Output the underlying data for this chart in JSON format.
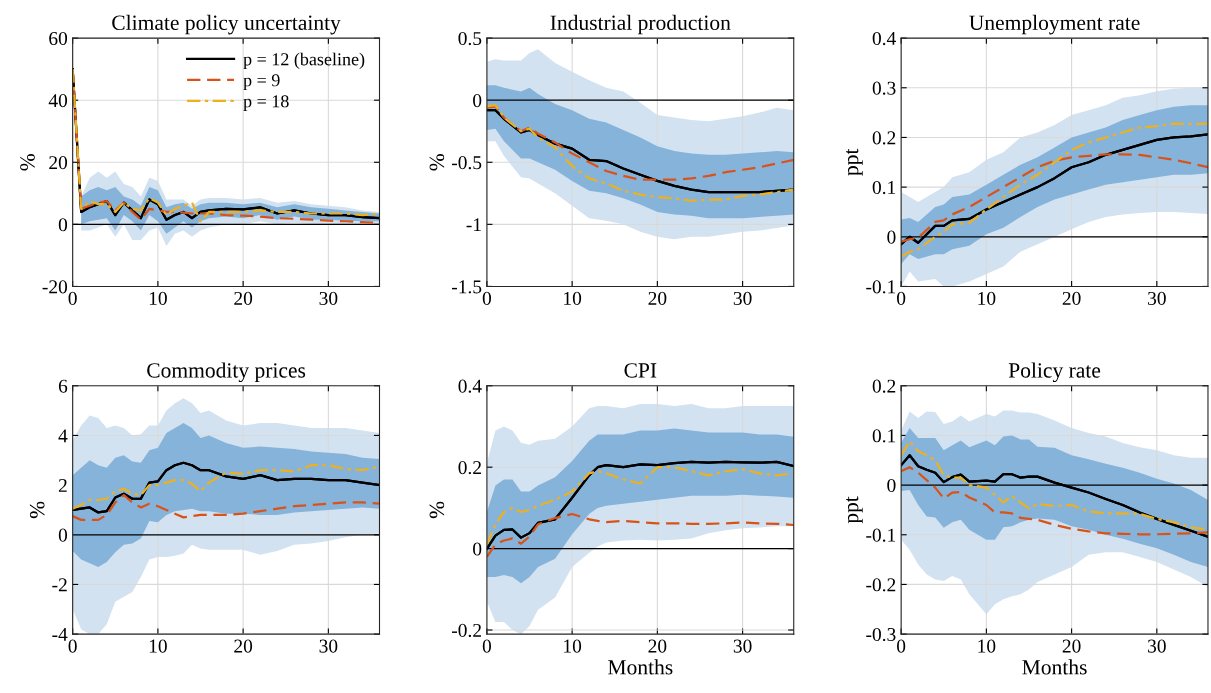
{
  "chart_data": [
    {
      "type": "line",
      "title": "Climate policy uncertainty",
      "ylabel": "%",
      "xlim": [
        0,
        36
      ],
      "xticks": [
        0,
        10,
        20,
        30
      ],
      "ylim": [
        -20,
        60
      ],
      "yticks": [
        -20,
        0,
        20,
        40,
        60
      ],
      "grid": true,
      "legend": "top right",
      "ref_lines": [
        {
          "axis": "y",
          "value": 0,
          "color": "#000000"
        }
      ],
      "x": [
        0,
        1,
        2,
        3,
        4,
        5,
        6,
        7,
        8,
        9,
        10,
        11,
        12,
        13,
        14,
        15,
        16,
        18,
        20,
        22,
        24,
        26,
        28,
        30,
        32,
        34,
        36
      ],
      "series": [
        {
          "color": "#000000",
          "line_style": "solid",
          "values": [
            50,
            4,
            5.5,
            6.5,
            7.5,
            3,
            7,
            4.5,
            2,
            8,
            6.5,
            1.5,
            3,
            4,
            2,
            4,
            4.5,
            5,
            4.8,
            5.5,
            3.5,
            4.5,
            3.5,
            3,
            3,
            2.3,
            2
          ],
          "lower": [
            null,
            -2,
            -2,
            -1,
            0,
            -4,
            0,
            -5,
            -5,
            -2,
            -1,
            -7,
            -3,
            -2,
            -4,
            -2,
            -1,
            0,
            0,
            1,
            0,
            0.5,
            0,
            0,
            0,
            0,
            0
          ],
          "upper": [
            null,
            9,
            15,
            17,
            15,
            17,
            13,
            12,
            9,
            15,
            14,
            8,
            8,
            8,
            6,
            8,
            8.5,
            8.5,
            8,
            8.5,
            7,
            7.5,
            6.5,
            6,
            5.5,
            4.5,
            4
          ]
        },
        {
          "name": "p = 12 (baseline)",
          "color": "#000000",
          "line_style": "solid",
          "values": [
            50,
            4,
            5.5,
            6.5,
            7.5,
            3,
            7,
            4.5,
            2,
            8,
            6.5,
            1.5,
            3,
            4,
            2,
            4,
            4.5,
            5,
            4.8,
            5.5,
            3.5,
            4.5,
            3.5,
            3,
            3,
            2.3,
            2
          ],
          "lower": [
            null,
            0,
            1,
            1.5,
            2,
            -2,
            3,
            1,
            -2,
            3,
            1,
            -3,
            -1,
            1,
            -1,
            1,
            2,
            2.5,
            2,
            3,
            1.5,
            2.5,
            1.5,
            1.5,
            1.2,
            1,
            1
          ],
          "upper": [
            null,
            9,
            11,
            12,
            11,
            12,
            9,
            8,
            6,
            12,
            11,
            5.5,
            6.5,
            7,
            5,
            6.5,
            7,
            7,
            6.5,
            7,
            5.5,
            6.5,
            5.5,
            5,
            4.5,
            4,
            3.5
          ]
        },
        {
          "name": "p = 9",
          "color": "#d95319",
          "line_style": "dashed",
          "values": [
            50,
            5,
            6,
            7,
            7.5,
            4.5,
            7,
            4,
            1.5,
            5,
            4.5,
            4,
            4,
            3.8,
            3.5,
            3.5,
            3.5,
            3,
            2.8,
            2.5,
            2,
            1.8,
            1.5,
            1.2,
            1,
            0.7,
            0.5
          ]
        },
        {
          "name": "p = 18",
          "color": "#edb120",
          "line_style": "dashdot",
          "values": [
            50,
            5,
            7.5,
            6.5,
            6.5,
            4,
            7,
            5,
            4.5,
            8.5,
            7,
            3,
            5,
            6,
            7,
            1,
            4,
            4,
            4,
            4.5,
            4,
            4,
            3.5,
            3.5,
            3.5,
            3,
            3.5
          ]
        }
      ]
    },
    {
      "type": "line",
      "title": "Industrial production",
      "ylabel": "%",
      "xlim": [
        0,
        36
      ],
      "xticks": [
        0,
        10,
        20,
        30
      ],
      "ylim": [
        -1.5,
        0.5
      ],
      "yticks": [
        -1.5,
        -1,
        -0.5,
        0,
        0.5
      ],
      "grid": true,
      "ref_lines": [
        {
          "axis": "y",
          "value": 0,
          "color": "#000000"
        }
      ],
      "x": [
        0,
        1,
        2,
        4,
        5,
        6,
        8,
        10,
        12,
        14,
        16,
        18,
        20,
        22,
        24,
        26,
        28,
        30,
        32,
        34,
        36
      ],
      "series": [
        {
          "color": "#000000",
          "line_style": "solid",
          "values": [
            -0.08,
            -0.08,
            -0.15,
            -0.26,
            -0.24,
            -0.28,
            -0.35,
            -0.39,
            -0.48,
            -0.49,
            -0.55,
            -0.6,
            -0.65,
            -0.69,
            -0.72,
            -0.74,
            -0.74,
            -0.74,
            -0.74,
            -0.73,
            -0.72
          ],
          "lower": [
            -0.33,
            -0.33,
            -0.45,
            -0.62,
            -0.63,
            -0.67,
            -0.75,
            -0.85,
            -0.95,
            -0.97,
            -1.0,
            -1.06,
            -1.1,
            -1.12,
            -1.1,
            -1.1,
            -1.08,
            -1.06,
            -1.05,
            -1.03,
            -1.01
          ],
          "upper": [
            0.31,
            0.33,
            0.32,
            0.32,
            0.38,
            0.41,
            0.3,
            0.23,
            0.16,
            0.1,
            0.07,
            -0.02,
            -0.12,
            -0.14,
            -0.16,
            -0.17,
            -0.15,
            -0.13,
            -0.1,
            -0.06,
            -0.08
          ]
        },
        {
          "color": "#000000",
          "line_style": "solid",
          "values": [
            -0.08,
            -0.08,
            -0.15,
            -0.26,
            -0.24,
            -0.28,
            -0.35,
            -0.39,
            -0.48,
            -0.49,
            -0.55,
            -0.6,
            -0.65,
            -0.69,
            -0.72,
            -0.74,
            -0.74,
            -0.74,
            -0.74,
            -0.73,
            -0.72
          ],
          "lower": [
            -0.24,
            -0.23,
            -0.33,
            -0.47,
            -0.47,
            -0.5,
            -0.56,
            -0.65,
            -0.73,
            -0.75,
            -0.79,
            -0.84,
            -0.9,
            -0.92,
            -0.93,
            -0.95,
            -0.95,
            -0.95,
            -0.94,
            -0.93,
            -0.92
          ],
          "upper": [
            0.12,
            0.12,
            0.1,
            0.07,
            0.1,
            0.05,
            -0.03,
            -0.08,
            -0.15,
            -0.18,
            -0.24,
            -0.3,
            -0.37,
            -0.41,
            -0.43,
            -0.44,
            -0.44,
            -0.43,
            -0.42,
            -0.41,
            -0.42
          ]
        },
        {
          "color": "#d95319",
          "line_style": "dashed",
          "values": [
            -0.06,
            -0.05,
            -0.14,
            -0.25,
            -0.22,
            -0.27,
            -0.34,
            -0.43,
            -0.5,
            -0.57,
            -0.61,
            -0.64,
            -0.64,
            -0.64,
            -0.63,
            -0.61,
            -0.58,
            -0.56,
            -0.54,
            -0.51,
            -0.48
          ]
        },
        {
          "color": "#edb120",
          "line_style": "dashdot",
          "values": [
            -0.05,
            -0.04,
            -0.14,
            -0.25,
            -0.23,
            -0.3,
            -0.38,
            -0.53,
            -0.63,
            -0.67,
            -0.73,
            -0.76,
            -0.78,
            -0.79,
            -0.81,
            -0.8,
            -0.8,
            -0.77,
            -0.76,
            -0.74,
            -0.72
          ]
        }
      ]
    },
    {
      "type": "line",
      "title": "Unemployment rate",
      "ylabel": "ppt",
      "xlim": [
        0,
        36
      ],
      "xticks": [
        0,
        10,
        20,
        30
      ],
      "ylim": [
        -0.1,
        0.4
      ],
      "yticks": [
        -0.1,
        0,
        0.1,
        0.2,
        0.3,
        0.4
      ],
      "grid": true,
      "ref_lines": [
        {
          "axis": "y",
          "value": 0,
          "color": "#000000"
        }
      ],
      "x": [
        0,
        1,
        2,
        4,
        5,
        6,
        8,
        10,
        12,
        14,
        16,
        18,
        20,
        22,
        24,
        26,
        28,
        30,
        32,
        34,
        36
      ],
      "series": [
        {
          "color": "#000000",
          "line_style": "solid",
          "values": [
            -0.015,
            0,
            -0.012,
            0.022,
            0.022,
            0.033,
            0.036,
            0.055,
            0.07,
            0.085,
            0.1,
            0.118,
            0.14,
            0.15,
            0.165,
            0.175,
            0.185,
            0.195,
            0.2,
            0.202,
            0.206
          ],
          "lower": [
            -0.1,
            -0.07,
            -0.09,
            -0.085,
            -0.1,
            -0.1,
            -0.09,
            -0.075,
            -0.06,
            -0.03,
            -0.015,
            0,
            0.015,
            0.03,
            0.04,
            0.045,
            0.048,
            0.05,
            0.05,
            0.048,
            0.046
          ],
          "upper": [
            0.09,
            0.08,
            0.07,
            0.09,
            0.1,
            0.12,
            0.13,
            0.155,
            0.17,
            0.2,
            0.21,
            0.225,
            0.245,
            0.255,
            0.265,
            0.28,
            0.285,
            0.293,
            0.298,
            0.3,
            0.3
          ]
        },
        {
          "color": "#000000",
          "line_style": "solid",
          "values": [
            -0.015,
            0,
            -0.012,
            0.022,
            0.022,
            0.033,
            0.036,
            0.055,
            0.07,
            0.085,
            0.1,
            0.118,
            0.14,
            0.15,
            0.165,
            0.175,
            0.185,
            0.195,
            0.2,
            0.202,
            0.206
          ],
          "lower": [
            -0.055,
            -0.035,
            -0.045,
            -0.035,
            -0.035,
            -0.025,
            -0.018,
            0.005,
            0.018,
            0.04,
            0.06,
            0.075,
            0.085,
            0.095,
            0.105,
            0.11,
            0.115,
            0.12,
            0.125,
            0.125,
            0.128
          ],
          "upper": [
            0.035,
            0.038,
            0.03,
            0.06,
            0.065,
            0.08,
            0.085,
            0.105,
            0.125,
            0.145,
            0.16,
            0.18,
            0.2,
            0.21,
            0.22,
            0.235,
            0.245,
            0.255,
            0.262,
            0.265,
            0.265
          ]
        },
        {
          "color": "#d95319",
          "line_style": "dashed",
          "values": [
            -0.01,
            -0.005,
            -0.002,
            0.03,
            0.033,
            0.045,
            0.06,
            0.08,
            0.1,
            0.12,
            0.14,
            0.153,
            0.16,
            0.163,
            0.166,
            0.166,
            0.165,
            0.16,
            0.155,
            0.148,
            0.14
          ]
        },
        {
          "color": "#edb120",
          "line_style": "dashdot",
          "values": [
            -0.04,
            -0.03,
            -0.025,
            0,
            0.01,
            0.025,
            0.028,
            0.055,
            0.08,
            0.105,
            0.125,
            0.15,
            0.175,
            0.19,
            0.2,
            0.21,
            0.22,
            0.223,
            0.228,
            0.227,
            0.228
          ]
        }
      ]
    },
    {
      "type": "line",
      "title": "Commodity prices",
      "ylabel": "%",
      "xlim": [
        0,
        36
      ],
      "xticks": [
        0,
        10,
        20,
        30
      ],
      "ylim": [
        -4,
        6
      ],
      "yticks": [
        -4,
        -2,
        0,
        2,
        4,
        6
      ],
      "grid": true,
      "ref_lines": [
        {
          "axis": "y",
          "value": 0,
          "color": "#000000"
        }
      ],
      "x": [
        0,
        1,
        2,
        3,
        4,
        5,
        6,
        7,
        8,
        9,
        10,
        11,
        12,
        13,
        14,
        15,
        16,
        18,
        20,
        22,
        24,
        26,
        28,
        30,
        32,
        34,
        36
      ],
      "series": [
        {
          "color": "#000000",
          "line_style": "solid",
          "values": [
            1.0,
            1.05,
            1.1,
            0.9,
            0.95,
            1.5,
            1.65,
            1.45,
            1.45,
            2.1,
            2.15,
            2.6,
            2.8,
            2.9,
            2.8,
            2.6,
            2.6,
            2.35,
            2.25,
            2.4,
            2.2,
            2.25,
            2.25,
            2.2,
            2.2,
            2.1,
            2.0
          ],
          "lower": [
            -3.0,
            -3.8,
            -4.0,
            -4.0,
            -3.6,
            -2.7,
            -2.5,
            -2.3,
            -1.7,
            -1.0,
            -0.9,
            -0.9,
            -0.85,
            -0.75,
            -0.4,
            -0.55,
            -0.6,
            -0.6,
            -0.6,
            -0.8,
            -0.65,
            -0.4,
            -0.35,
            -0.25,
            -0.1,
            0,
            0.05
          ],
          "upper": [
            3.8,
            4.4,
            4.8,
            4.7,
            4.3,
            4.4,
            4.3,
            4.0,
            4.05,
            4.4,
            4.4,
            5.0,
            5.3,
            5.5,
            5.3,
            4.9,
            5.0,
            4.6,
            4.4,
            4.5,
            4.5,
            4.4,
            4.3,
            4.3,
            4.3,
            4.2,
            4.1
          ]
        },
        {
          "color": "#000000",
          "line_style": "solid",
          "values": [
            1.0,
            1.05,
            1.1,
            0.9,
            0.95,
            1.5,
            1.65,
            1.45,
            1.45,
            2.1,
            2.15,
            2.6,
            2.8,
            2.9,
            2.8,
            2.6,
            2.6,
            2.35,
            2.25,
            2.4,
            2.2,
            2.25,
            2.25,
            2.2,
            2.2,
            2.1,
            2.0
          ],
          "lower": [
            -0.65,
            -1.0,
            -1.15,
            -1.3,
            -1.1,
            -0.7,
            -0.4,
            -0.35,
            -0.15,
            0.55,
            0.5,
            0.8,
            0.95,
            1.0,
            1.05,
            0.95,
            0.95,
            0.85,
            0.85,
            0.8,
            0.8,
            0.9,
            0.95,
            1.0,
            1.05,
            1.1,
            1.05
          ],
          "upper": [
            2.4,
            2.7,
            3.0,
            2.8,
            2.7,
            3.1,
            3.2,
            2.95,
            2.9,
            3.4,
            3.5,
            4.1,
            4.3,
            4.5,
            4.3,
            3.9,
            4.0,
            3.7,
            3.5,
            3.55,
            3.5,
            3.45,
            3.35,
            3.3,
            3.25,
            3.1,
            3.05
          ]
        },
        {
          "color": "#d95319",
          "line_style": "dashed",
          "values": [
            0.75,
            0.6,
            0.6,
            0.6,
            0.8,
            1.3,
            1.6,
            1.3,
            1.1,
            1.25,
            1.15,
            1.0,
            0.85,
            0.7,
            0.75,
            0.8,
            0.8,
            0.8,
            0.85,
            0.95,
            1.05,
            1.15,
            1.2,
            1.25,
            1.3,
            1.3,
            1.25
          ]
        },
        {
          "color": "#edb120",
          "line_style": "dashdot",
          "values": [
            1.05,
            1.2,
            1.4,
            1.4,
            1.45,
            1.75,
            1.85,
            1.65,
            1.6,
            2.0,
            2.0,
            2.1,
            2.2,
            2.2,
            2.05,
            1.75,
            2.1,
            2.5,
            2.45,
            2.6,
            2.6,
            2.55,
            2.8,
            2.8,
            2.65,
            2.6,
            2.75
          ]
        }
      ]
    },
    {
      "type": "line",
      "title": "CPI",
      "ylabel": "%",
      "xlabel": "Months",
      "xlim": [
        0,
        36
      ],
      "xticks": [
        0,
        10,
        20,
        30
      ],
      "ylim": [
        -0.21,
        0.4
      ],
      "yticks": [
        -0.2,
        0,
        0.2,
        0.4
      ],
      "grid": true,
      "ref_lines": [
        {
          "axis": "y",
          "value": 0,
          "color": "#000000"
        }
      ],
      "x": [
        0,
        1,
        2,
        3,
        4,
        5,
        6,
        8,
        10,
        12,
        13,
        14,
        16,
        18,
        20,
        22,
        24,
        26,
        28,
        30,
        32,
        34,
        36
      ],
      "series": [
        {
          "color": "#000000",
          "line_style": "solid",
          "values": [
            0,
            0.032,
            0.046,
            0.047,
            0.027,
            0.038,
            0.063,
            0.072,
            0.125,
            0.18,
            0.2,
            0.205,
            0.2,
            0.207,
            0.205,
            0.21,
            0.213,
            0.211,
            0.213,
            0.212,
            0.211,
            0.213,
            0.203
          ],
          "lower": [
            -0.13,
            -0.18,
            -0.18,
            -0.2,
            -0.21,
            -0.19,
            -0.15,
            -0.12,
            -0.045,
            -0.01,
            0.005,
            0.015,
            0.02,
            0.022,
            0.02,
            0.022,
            0.025,
            0.038,
            0.045,
            0.05,
            0.052,
            0.055,
            0.055
          ],
          "upper": [
            0.21,
            0.29,
            0.3,
            0.29,
            0.26,
            0.255,
            0.265,
            0.27,
            0.3,
            0.345,
            0.35,
            0.35,
            0.345,
            0.355,
            0.355,
            0.35,
            0.355,
            0.345,
            0.345,
            0.35,
            0.35,
            0.35,
            0.35
          ]
        },
        {
          "color": "#000000",
          "line_style": "solid",
          "values": [
            0,
            0.032,
            0.046,
            0.047,
            0.027,
            0.038,
            0.063,
            0.072,
            0.125,
            0.18,
            0.2,
            0.205,
            0.2,
            0.207,
            0.205,
            0.21,
            0.213,
            0.211,
            0.213,
            0.212,
            0.211,
            0.213,
            0.203
          ],
          "lower": [
            -0.07,
            -0.07,
            -0.065,
            -0.07,
            -0.085,
            -0.07,
            -0.045,
            -0.025,
            0.035,
            0.085,
            0.1,
            0.105,
            0.11,
            0.115,
            0.12,
            0.125,
            0.13,
            0.13,
            0.13,
            0.132,
            0.13,
            0.128,
            0.125
          ],
          "upper": [
            0.09,
            0.155,
            0.17,
            0.17,
            0.14,
            0.14,
            0.155,
            0.175,
            0.215,
            0.265,
            0.28,
            0.28,
            0.28,
            0.29,
            0.29,
            0.295,
            0.29,
            0.285,
            0.285,
            0.285,
            0.28,
            0.28,
            0.275
          ]
        },
        {
          "color": "#d95319",
          "line_style": "dashed",
          "values": [
            -0.02,
            0.01,
            0.02,
            0.025,
            0.012,
            0.03,
            0.06,
            0.075,
            0.085,
            0.072,
            0.068,
            0.065,
            0.068,
            0.065,
            0.062,
            0.062,
            0.061,
            0.061,
            0.062,
            0.064,
            0.062,
            0.061,
            0.058
          ]
        },
        {
          "color": "#edb120",
          "line_style": "dashdot",
          "values": [
            0.01,
            0.06,
            0.09,
            0.1,
            0.09,
            0.095,
            0.105,
            0.12,
            0.14,
            0.185,
            0.19,
            0.185,
            0.17,
            0.16,
            0.2,
            0.2,
            0.19,
            0.18,
            0.19,
            0.195,
            0.185,
            0.18,
            0.185
          ]
        }
      ]
    },
    {
      "type": "line",
      "title": "Policy rate",
      "ylabel": "ppt",
      "xlabel": "Months",
      "xlim": [
        0,
        36
      ],
      "xticks": [
        0,
        10,
        20,
        30
      ],
      "ylim": [
        -0.3,
        0.2
      ],
      "yticks": [
        -0.3,
        -0.2,
        -0.1,
        0,
        0.1,
        0.2
      ],
      "grid": true,
      "ref_lines": [
        {
          "axis": "y",
          "value": 0,
          "color": "#000000"
        }
      ],
      "x": [
        0,
        1,
        2,
        3,
        4,
        5,
        6,
        7,
        8,
        10,
        11,
        12,
        13,
        14,
        15,
        16,
        18,
        20,
        22,
        24,
        26,
        28,
        30,
        32,
        34,
        36
      ],
      "series": [
        {
          "color": "#000000",
          "line_style": "solid",
          "values": [
            0.04,
            0.06,
            0.038,
            0.031,
            0.025,
            0.006,
            0.016,
            0.021,
            0.007,
            0.009,
            0.007,
            0.022,
            0.022,
            0.015,
            0.017,
            0.017,
            0.005,
            -0.005,
            -0.015,
            -0.028,
            -0.04,
            -0.055,
            -0.068,
            -0.08,
            -0.092,
            -0.104
          ],
          "lower": [
            -0.11,
            -0.13,
            -0.16,
            -0.18,
            -0.19,
            -0.193,
            -0.183,
            -0.19,
            -0.22,
            -0.26,
            -0.24,
            -0.23,
            -0.224,
            -0.22,
            -0.21,
            -0.195,
            -0.18,
            -0.165,
            -0.14,
            -0.135,
            -0.135,
            -0.145,
            -0.155,
            -0.17,
            -0.185,
            -0.205
          ],
          "upper": [
            0.11,
            0.148,
            0.135,
            0.148,
            0.147,
            0.123,
            0.128,
            0.14,
            0.128,
            0.143,
            0.138,
            0.15,
            0.15,
            0.146,
            0.146,
            0.143,
            0.13,
            0.115,
            0.105,
            0.098,
            0.085,
            0.076,
            0.07,
            0.06,
            0.055,
            0.055
          ]
        },
        {
          "color": "#000000",
          "line_style": "solid",
          "values": [
            0.04,
            0.06,
            0.038,
            0.031,
            0.025,
            0.006,
            0.016,
            0.021,
            0.007,
            0.009,
            0.007,
            0.022,
            0.022,
            0.015,
            0.017,
            0.017,
            0.005,
            -0.005,
            -0.015,
            -0.028,
            -0.04,
            -0.055,
            -0.068,
            -0.08,
            -0.092,
            -0.104
          ],
          "lower": [
            -0.012,
            -0.01,
            -0.04,
            -0.063,
            -0.065,
            -0.086,
            -0.075,
            -0.07,
            -0.09,
            -0.11,
            -0.11,
            -0.085,
            -0.083,
            -0.075,
            -0.07,
            -0.067,
            -0.07,
            -0.083,
            -0.09,
            -0.1,
            -0.108,
            -0.118,
            -0.127,
            -0.14,
            -0.155,
            -0.165
          ],
          "upper": [
            0.085,
            0.115,
            0.095,
            0.095,
            0.095,
            0.07,
            0.08,
            0.09,
            0.076,
            0.09,
            0.08,
            0.098,
            0.1,
            0.092,
            0.092,
            0.077,
            0.075,
            0.06,
            0.052,
            0.043,
            0.035,
            0.025,
            0.013,
            0.003,
            -0.01,
            -0.03
          ]
        },
        {
          "color": "#d95319",
          "line_style": "dashed",
          "values": [
            0.028,
            0.036,
            0.025,
            0.01,
            -0.005,
            -0.027,
            -0.015,
            -0.014,
            -0.025,
            -0.04,
            -0.055,
            -0.055,
            -0.057,
            -0.066,
            -0.068,
            -0.07,
            -0.08,
            -0.088,
            -0.093,
            -0.097,
            -0.098,
            -0.099,
            -0.099,
            -0.098,
            -0.097,
            -0.095
          ]
        },
        {
          "color": "#edb120",
          "line_style": "dashdot",
          "values": [
            0.06,
            0.088,
            0.068,
            0.06,
            0.05,
            0.02,
            0.015,
            0.015,
            0,
            -0.005,
            -0.02,
            -0.035,
            -0.022,
            -0.035,
            -0.047,
            -0.038,
            -0.042,
            -0.04,
            -0.053,
            -0.057,
            -0.057,
            -0.058,
            -0.068,
            -0.075,
            -0.085,
            -0.09
          ]
        }
      ]
    }
  ]
}
